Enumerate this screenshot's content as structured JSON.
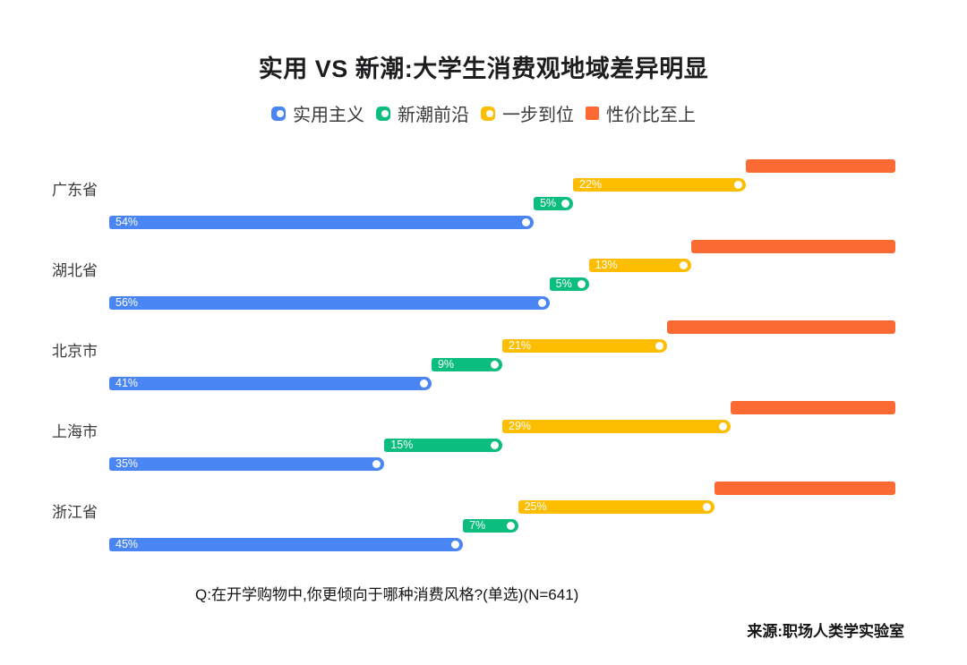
{
  "title": "实用 VS 新潮:大学生消费观地域差异明显",
  "legend": [
    {
      "key": "practical",
      "label": "实用主义",
      "color": "#4A85F4",
      "shape": "pill-dot"
    },
    {
      "key": "trendy",
      "label": "新潮前沿",
      "color": "#0CBE7D",
      "shape": "pill-dot"
    },
    {
      "key": "one-step",
      "label": "一步到位",
      "color": "#FDBE02",
      "shape": "pill-dot"
    },
    {
      "key": "cost-effective",
      "label": "性价比至上",
      "color": "#FA6A32",
      "shape": "square"
    }
  ],
  "chart_data": {
    "type": "bar",
    "variant": "horizontal-staircase-stacked",
    "categories": [
      "广东省",
      "湖北省",
      "北京市",
      "上海市",
      "浙江省"
    ],
    "series": [
      {
        "key": "practical",
        "name": "实用主义",
        "color": "#4A85F4",
        "values": [
          54,
          56,
          41,
          35,
          45
        ],
        "value_labels": [
          "54%",
          "56%",
          "41%",
          "35%",
          "45%"
        ],
        "show_label": true,
        "show_dot": true
      },
      {
        "key": "trendy",
        "name": "新潮前沿",
        "color": "#0CBE7D",
        "values": [
          5,
          5,
          9,
          15,
          7
        ],
        "value_labels": [
          "5%",
          "5%",
          "9%",
          "15%",
          "7%"
        ],
        "show_label": true,
        "show_dot": true
      },
      {
        "key": "one-step",
        "name": "一步到位",
        "color": "#FDBE02",
        "values": [
          22,
          13,
          21,
          29,
          25
        ],
        "value_labels": [
          "22%",
          "13%",
          "21%",
          "29%",
          "25%"
        ],
        "show_label": true,
        "show_dot": true
      },
      {
        "key": "cost-effective",
        "name": "性价比至上",
        "color": "#FA6A32",
        "values": [
          19,
          26,
          29,
          21,
          23
        ],
        "value_labels": null,
        "show_label": false,
        "show_dot": false
      }
    ],
    "xlim": [
      0,
      100
    ],
    "axis_visible": false,
    "grid": false,
    "legend_position": "top-center"
  },
  "footer": {
    "question": "Q:在开学购物中,你更倾向于哪种消费风格?(单选)(N=641)",
    "source": "来源:职场人类学实验室"
  }
}
